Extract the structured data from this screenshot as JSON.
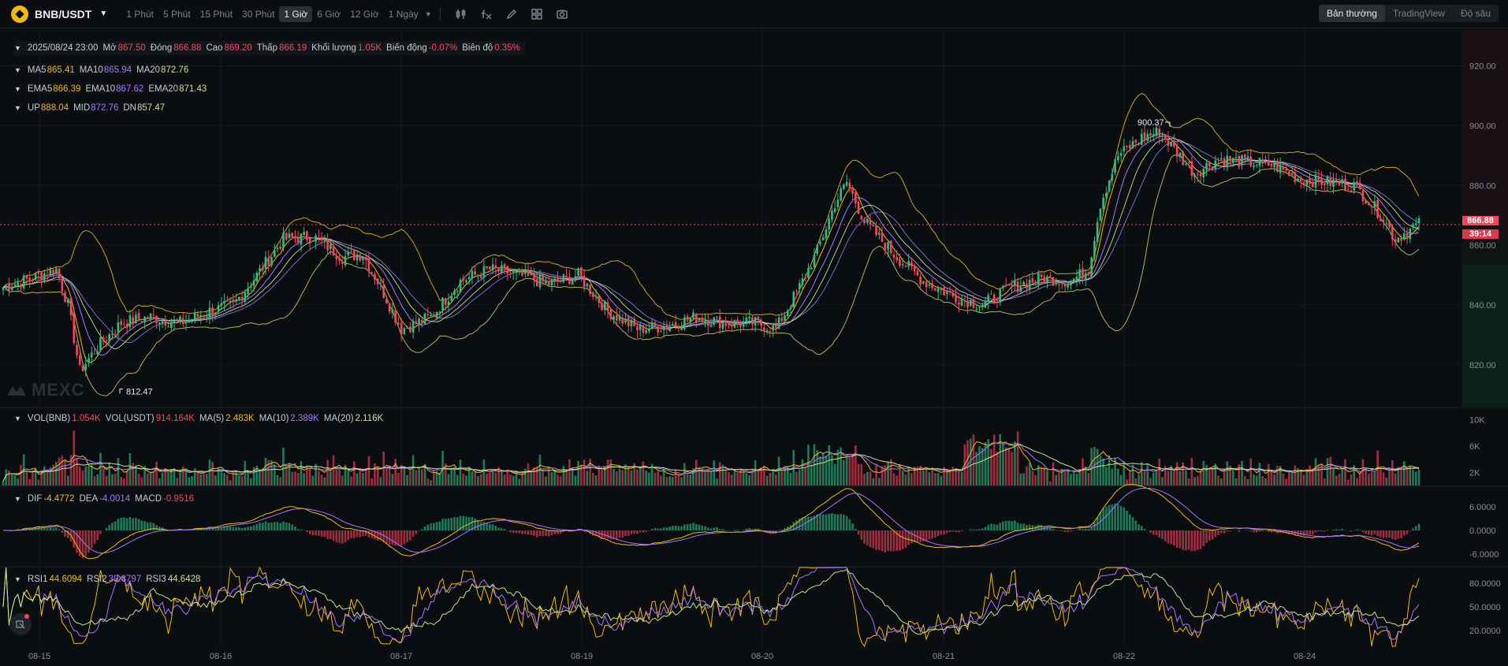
{
  "toolbar": {
    "pair": "BNB/USDT",
    "intervals": [
      "1 Phút",
      "5 Phút",
      "15 Phút",
      "30 Phút",
      "1 Giờ",
      "6 Giờ",
      "12 Giờ",
      "1 Ngày"
    ],
    "active_interval": "1 Giờ",
    "tools": [
      "candle-type-icon",
      "indicator-fx-icon",
      "draw-pen-icon",
      "layout-grid-icon",
      "camera-icon"
    ],
    "views": [
      "Bản thường",
      "TradingView",
      "Độ sâu"
    ],
    "active_view": "Bản thường"
  },
  "ohlc": {
    "time": "2025/08/24 23:00",
    "open_label": "Mở",
    "open": "867.50",
    "close_label": "Đóng",
    "close": "866.88",
    "high_label": "Cao",
    "high": "869.20",
    "low_label": "Thấp",
    "low": "866.19",
    "volume_label": "Khối lượng",
    "volume": "1.05K",
    "change_label": "Biến động",
    "change": "-0.07%",
    "amplitude_label": "Biên độ",
    "amplitude": "0.35%"
  },
  "ma_legend": {
    "ma5_label": "MA5",
    "ma5": "865.41",
    "ma10_label": "MA10",
    "ma10": "865.94",
    "ma20_label": "MA20",
    "ma20": "872.76"
  },
  "ema_legend": {
    "ema5_label": "EMA5",
    "ema5": "866.39",
    "ema10_label": "EMA10",
    "ema10": "867.62",
    "ema20_label": "EMA20",
    "ema20": "871.43"
  },
  "boll_legend": {
    "up_label": "UP",
    "up": "888.04",
    "mid_label": "MID",
    "mid": "872.76",
    "dn_label": "DN",
    "dn": "857.47"
  },
  "vol_legend": {
    "vol_bnb_label": "VOL(BNB)",
    "vol_bnb": "1.054K",
    "vol_usdt_label": "VOL(USDT)",
    "vol_usdt": "914.164K",
    "ma5_label": "MA(5)",
    "ma5": "2.483K",
    "ma10_label": "MA(10)",
    "ma10": "2.389K",
    "ma20_label": "MA(20)",
    "ma20": "2.116K"
  },
  "macd_legend": {
    "dif_label": "DIF",
    "dif": "-4.4772",
    "dea_label": "DEA",
    "dea": "-4.0014",
    "macd_label": "MACD",
    "macd": "-0.9516"
  },
  "rsi_legend": {
    "rsi1_label": "RSI1",
    "rsi1": "44.6094",
    "rsi2_label": "RSI2",
    "rsi2": "39.8797",
    "rsi3_label": "RSI3",
    "rsi3": "44.6428"
  },
  "current_price": {
    "price": "866.88",
    "countdown": "39:14"
  },
  "watermark": "MEXC",
  "chart_data": {
    "type": "candlestick",
    "price_axis": {
      "ticks": [
        "920.00",
        "900.00",
        "880.00",
        "860.00",
        "840.00",
        "820.00"
      ],
      "range": [
        806,
        932
      ]
    },
    "volume_axis": {
      "ticks": [
        "10K",
        "6K",
        "2K"
      ],
      "range": [
        0,
        11000
      ]
    },
    "macd_axis": {
      "ticks": [
        "6.0000",
        "0.0000",
        "-6.0000"
      ],
      "range": [
        -9,
        11
      ]
    },
    "rsi_axis": {
      "ticks": [
        "80.0000",
        "50.0000",
        "20.0000"
      ],
      "range": [
        0,
        100
      ]
    },
    "x_ticks": [
      "08-15",
      "08-16",
      "08-17",
      "08-19",
      "08-20",
      "08-21",
      "08-22",
      "08-24"
    ],
    "annotations": {
      "high": "900.37",
      "low": "812.47"
    },
    "close_anchors": [
      [
        0,
        846
      ],
      [
        10,
        849
      ],
      [
        18,
        852
      ],
      [
        22,
        840
      ],
      [
        26,
        818
      ],
      [
        32,
        826
      ],
      [
        40,
        834
      ],
      [
        50,
        836
      ],
      [
        60,
        834
      ],
      [
        70,
        838
      ],
      [
        78,
        840
      ],
      [
        86,
        850
      ],
      [
        95,
        862
      ],
      [
        105,
        863
      ],
      [
        115,
        856
      ],
      [
        122,
        857
      ],
      [
        128,
        846
      ],
      [
        135,
        832
      ],
      [
        145,
        836
      ],
      [
        155,
        848
      ],
      [
        165,
        852
      ],
      [
        175,
        850
      ],
      [
        185,
        847
      ],
      [
        195,
        850
      ],
      [
        205,
        838
      ],
      [
        215,
        832
      ],
      [
        225,
        833
      ],
      [
        235,
        836
      ],
      [
        245,
        834
      ],
      [
        255,
        834
      ],
      [
        262,
        832
      ],
      [
        270,
        846
      ],
      [
        276,
        858
      ],
      [
        282,
        874
      ],
      [
        286,
        881
      ],
      [
        292,
        868
      ],
      [
        302,
        857
      ],
      [
        312,
        848
      ],
      [
        322,
        843
      ],
      [
        332,
        840
      ],
      [
        342,
        846
      ],
      [
        352,
        849
      ],
      [
        362,
        848
      ],
      [
        368,
        852
      ],
      [
        372,
        874
      ],
      [
        378,
        890
      ],
      [
        386,
        896
      ],
      [
        392,
        898
      ],
      [
        398,
        891
      ],
      [
        404,
        884
      ],
      [
        412,
        889
      ],
      [
        420,
        888
      ],
      [
        430,
        887
      ],
      [
        440,
        882
      ],
      [
        450,
        881
      ],
      [
        458,
        880
      ],
      [
        462,
        876
      ],
      [
        468,
        869
      ],
      [
        472,
        862
      ],
      [
        478,
        866
      ],
      [
        480,
        867
      ]
    ],
    "series": [
      {
        "name": "MA5",
        "color": "#f0b90b"
      },
      {
        "name": "MA10",
        "color": "#a675ff"
      },
      {
        "name": "MA20",
        "color": "#c3e58f"
      }
    ]
  }
}
